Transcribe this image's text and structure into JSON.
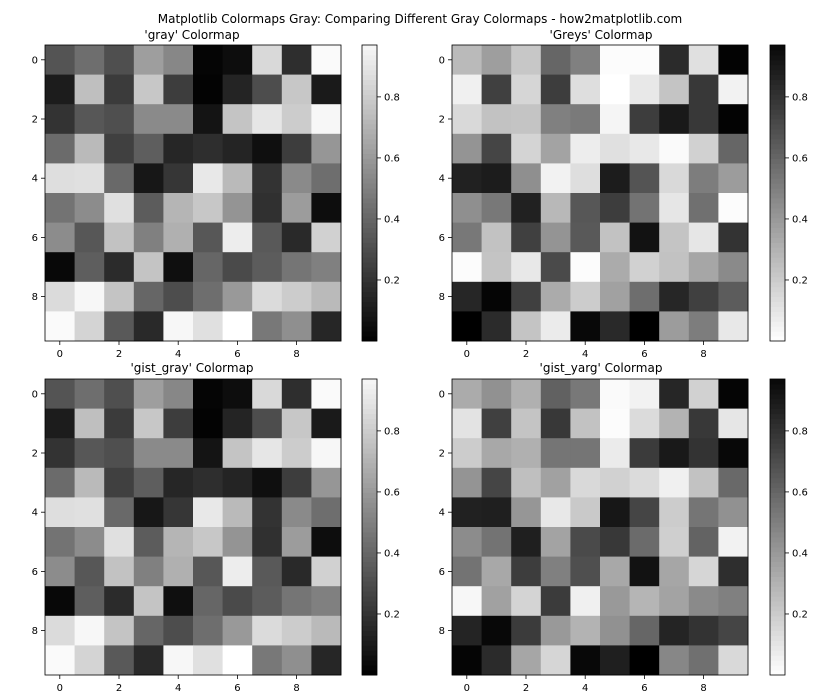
{
  "title": "Matplotlib Colormaps Gray: Comparing Different Gray Colormaps - how2matplotlib.com",
  "chart_data": [
    {
      "type": "heatmap",
      "title": "'gray' Colormap",
      "colormap": "gray",
      "x_ticks": [
        0,
        2,
        4,
        6,
        8
      ],
      "y_ticks": [
        0,
        2,
        4,
        6,
        8
      ],
      "colorbar_ticks": [
        0.2,
        0.4,
        0.6,
        0.8
      ],
      "colorbar_range": [
        0.0,
        0.97
      ],
      "values": [
        [
          0.33,
          0.43,
          0.31,
          0.62,
          0.53,
          0.02,
          0.05,
          0.85,
          0.18,
          0.98
        ],
        [
          0.11,
          0.75,
          0.23,
          0.78,
          0.24,
          0.01,
          0.14,
          0.3,
          0.78,
          0.1
        ],
        [
          0.2,
          0.34,
          0.31,
          0.54,
          0.54,
          0.08,
          0.77,
          0.9,
          0.8,
          0.97
        ],
        [
          0.42,
          0.73,
          0.25,
          0.37,
          0.15,
          0.18,
          0.14,
          0.06,
          0.24,
          0.59
        ],
        [
          0.87,
          0.88,
          0.41,
          0.09,
          0.21,
          0.91,
          0.73,
          0.2,
          0.54,
          0.43
        ],
        [
          0.45,
          0.55,
          0.88,
          0.36,
          0.71,
          0.78,
          0.58,
          0.19,
          0.61,
          0.05
        ],
        [
          0.55,
          0.34,
          0.76,
          0.5,
          0.69,
          0.34,
          0.93,
          0.35,
          0.16,
          0.82
        ],
        [
          0.03,
          0.37,
          0.17,
          0.77,
          0.06,
          0.4,
          0.29,
          0.36,
          0.46,
          0.5
        ],
        [
          0.86,
          0.97,
          0.77,
          0.4,
          0.3,
          0.43,
          0.6,
          0.86,
          0.8,
          0.73
        ],
        [
          0.98,
          0.83,
          0.35,
          0.16,
          0.97,
          0.88,
          1.0,
          0.47,
          0.56,
          0.15
        ]
      ]
    },
    {
      "type": "heatmap",
      "title": "'Greys' Colormap",
      "colormap": "Greys",
      "x_ticks": [
        0,
        2,
        4,
        6,
        8
      ],
      "y_ticks": [
        0,
        2,
        4,
        6,
        8
      ],
      "colorbar_ticks": [
        0.2,
        0.4,
        0.6,
        0.8
      ],
      "colorbar_range": [
        0.0,
        0.97
      ],
      "values": [
        [
          0.27,
          0.38,
          0.22,
          0.6,
          0.5,
          0.01,
          0.01,
          0.83,
          0.12,
          0.99
        ],
        [
          0.06,
          0.75,
          0.16,
          0.76,
          0.13,
          0.0,
          0.09,
          0.23,
          0.78,
          0.05
        ],
        [
          0.15,
          0.24,
          0.23,
          0.5,
          0.52,
          0.04,
          0.76,
          0.9,
          0.78,
          0.99
        ],
        [
          0.42,
          0.73,
          0.17,
          0.36,
          0.07,
          0.12,
          0.09,
          0.02,
          0.18,
          0.6
        ],
        [
          0.87,
          0.89,
          0.44,
          0.05,
          0.13,
          0.89,
          0.67,
          0.15,
          0.51,
          0.39
        ],
        [
          0.44,
          0.53,
          0.87,
          0.28,
          0.66,
          0.76,
          0.55,
          0.1,
          0.56,
          0.01
        ],
        [
          0.53,
          0.24,
          0.75,
          0.42,
          0.65,
          0.24,
          0.93,
          0.23,
          0.1,
          0.8
        ],
        [
          0.01,
          0.23,
          0.09,
          0.71,
          0.01,
          0.33,
          0.18,
          0.24,
          0.35,
          0.46
        ],
        [
          0.85,
          0.98,
          0.75,
          0.33,
          0.2,
          0.37,
          0.57,
          0.85,
          0.75,
          0.64
        ],
        [
          1.0,
          0.83,
          0.23,
          0.08,
          0.97,
          0.84,
          1.0,
          0.39,
          0.51,
          0.09
        ]
      ]
    },
    {
      "type": "heatmap",
      "title": "'gist_gray' Colormap",
      "colormap": "gist_gray",
      "x_ticks": [
        0,
        2,
        4,
        6,
        8
      ],
      "y_ticks": [
        0,
        2,
        4,
        6,
        8
      ],
      "colorbar_ticks": [
        0.2,
        0.4,
        0.6,
        0.8
      ],
      "colorbar_range": [
        0.0,
        0.97
      ],
      "values": [
        [
          0.33,
          0.43,
          0.31,
          0.62,
          0.53,
          0.02,
          0.05,
          0.85,
          0.18,
          0.98
        ],
        [
          0.11,
          0.75,
          0.23,
          0.78,
          0.24,
          0.01,
          0.14,
          0.3,
          0.78,
          0.1
        ],
        [
          0.2,
          0.34,
          0.31,
          0.54,
          0.54,
          0.08,
          0.77,
          0.9,
          0.8,
          0.97
        ],
        [
          0.42,
          0.73,
          0.25,
          0.37,
          0.15,
          0.18,
          0.14,
          0.06,
          0.24,
          0.59
        ],
        [
          0.87,
          0.88,
          0.41,
          0.09,
          0.21,
          0.91,
          0.73,
          0.2,
          0.54,
          0.43
        ],
        [
          0.45,
          0.55,
          0.88,
          0.36,
          0.71,
          0.78,
          0.58,
          0.19,
          0.61,
          0.05
        ],
        [
          0.55,
          0.34,
          0.76,
          0.5,
          0.69,
          0.34,
          0.93,
          0.35,
          0.16,
          0.82
        ],
        [
          0.03,
          0.37,
          0.17,
          0.77,
          0.06,
          0.4,
          0.29,
          0.36,
          0.46,
          0.5
        ],
        [
          0.86,
          0.97,
          0.77,
          0.4,
          0.3,
          0.43,
          0.6,
          0.86,
          0.8,
          0.73
        ],
        [
          0.98,
          0.83,
          0.35,
          0.16,
          0.97,
          0.88,
          1.0,
          0.47,
          0.56,
          0.15
        ]
      ]
    },
    {
      "type": "heatmap",
      "title": "'gist_yarg' Colormap",
      "colormap": "gist_yarg",
      "x_ticks": [
        0,
        2,
        4,
        6,
        8
      ],
      "y_ticks": [
        0,
        2,
        4,
        6,
        8
      ],
      "colorbar_ticks": [
        0.2,
        0.4,
        0.6,
        0.8
      ],
      "colorbar_range": [
        0.0,
        0.97
      ],
      "values": [
        [
          0.33,
          0.43,
          0.31,
          0.62,
          0.53,
          0.02,
          0.05,
          0.85,
          0.18,
          0.98
        ],
        [
          0.11,
          0.75,
          0.23,
          0.78,
          0.24,
          0.01,
          0.14,
          0.3,
          0.78,
          0.1
        ],
        [
          0.2,
          0.34,
          0.31,
          0.54,
          0.54,
          0.08,
          0.77,
          0.9,
          0.8,
          0.97
        ],
        [
          0.42,
          0.73,
          0.25,
          0.37,
          0.15,
          0.18,
          0.14,
          0.06,
          0.24,
          0.59
        ],
        [
          0.87,
          0.88,
          0.41,
          0.09,
          0.21,
          0.91,
          0.73,
          0.2,
          0.54,
          0.43
        ],
        [
          0.45,
          0.55,
          0.88,
          0.36,
          0.71,
          0.78,
          0.58,
          0.19,
          0.61,
          0.05
        ],
        [
          0.55,
          0.34,
          0.76,
          0.5,
          0.69,
          0.34,
          0.93,
          0.35,
          0.16,
          0.82
        ],
        [
          0.03,
          0.37,
          0.17,
          0.77,
          0.06,
          0.4,
          0.29,
          0.36,
          0.46,
          0.5
        ],
        [
          0.86,
          0.97,
          0.77,
          0.4,
          0.3,
          0.43,
          0.6,
          0.86,
          0.8,
          0.73
        ],
        [
          0.98,
          0.83,
          0.35,
          0.16,
          0.97,
          0.88,
          1.0,
          0.47,
          0.56,
          0.15
        ]
      ]
    }
  ]
}
